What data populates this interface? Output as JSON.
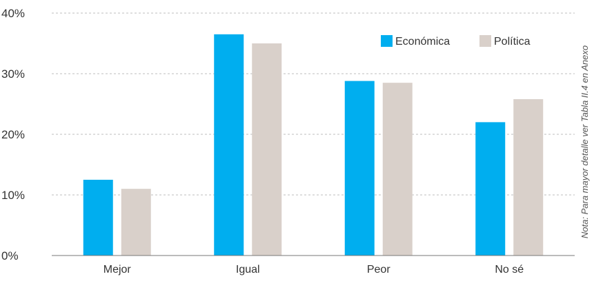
{
  "chart_data": {
    "type": "bar",
    "categories": [
      "Mejor",
      "Igual",
      "Peor",
      "No sé"
    ],
    "series": [
      {
        "name": "Económica",
        "color": "#00aeef",
        "values": [
          12.5,
          36.5,
          28.8,
          22.0
        ]
      },
      {
        "name": "Política",
        "color": "#d9d0ca",
        "values": [
          11.0,
          35.0,
          28.5,
          25.8
        ]
      }
    ],
    "y_ticks": [
      "0%",
      "10%",
      "20%",
      "30%",
      "40%"
    ],
    "ylim": [
      0,
      40
    ],
    "y_unit": "%",
    "grid": true,
    "legend_position": "top-right",
    "note": "Nota: Para mayor detalle ver Tabla II.4 en Anexo"
  }
}
